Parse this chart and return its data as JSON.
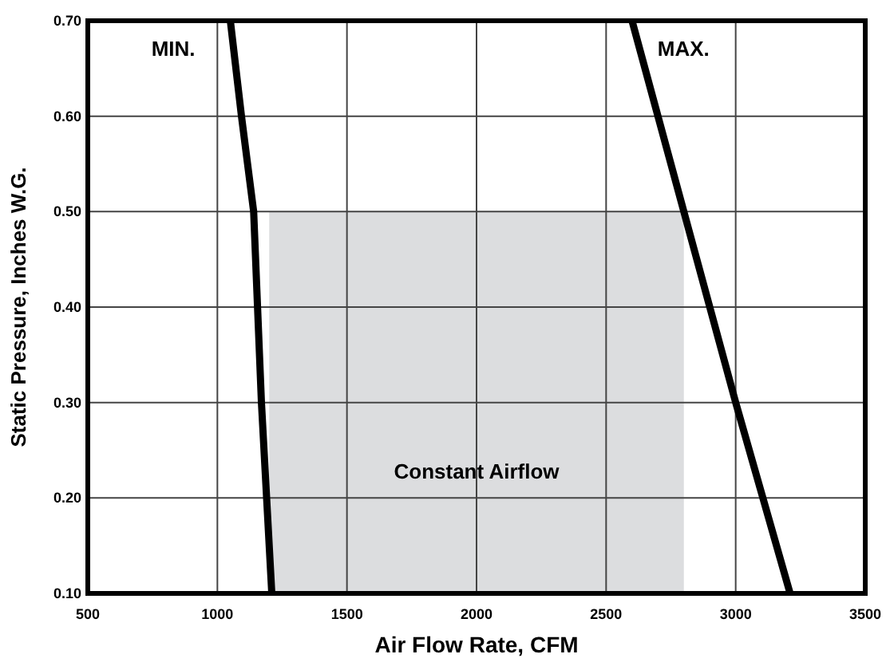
{
  "chart_data": {
    "type": "line",
    "xlabel": "Air Flow Rate, CFM",
    "ylabel": "Static Pressure, Inches W.G.",
    "xlim": [
      500,
      3500
    ],
    "xticks": [
      500,
      1000,
      1500,
      2000,
      2500,
      3000,
      3500
    ],
    "ylim": [
      0.1,
      0.7
    ],
    "yticks": [
      {
        "value": 0.1,
        "label": "0.10"
      },
      {
        "value": 0.2,
        "label": "0.20"
      },
      {
        "value": 0.3,
        "label": "0.30"
      },
      {
        "value": 0.4,
        "label": "0.40"
      },
      {
        "value": 0.5,
        "label": "0.50"
      },
      {
        "value": 0.6,
        "label": "0.60"
      },
      {
        "value": 0.7,
        "label": "0.70"
      }
    ],
    "grid": true,
    "marker": "none",
    "line_style": "solid",
    "series": [
      {
        "type": "area",
        "name": "Constant Airflow",
        "color": "#dcdddf",
        "x": [
          1200,
          2800
        ],
        "values": [
          0.5,
          0.5
        ]
      },
      {
        "name": "MIN.",
        "color": "#000000",
        "x": [
          1050,
          1093,
          1140,
          1155,
          1170,
          1190,
          1210
        ],
        "values": [
          0.7,
          0.6,
          0.5,
          0.4,
          0.3,
          0.2,
          0.1
        ]
      },
      {
        "name": "MAX.",
        "color": "#000000",
        "x": [
          2600,
          2800,
          3000,
          3210
        ],
        "values": [
          0.7,
          0.5,
          0.3,
          0.1
        ]
      }
    ]
  }
}
